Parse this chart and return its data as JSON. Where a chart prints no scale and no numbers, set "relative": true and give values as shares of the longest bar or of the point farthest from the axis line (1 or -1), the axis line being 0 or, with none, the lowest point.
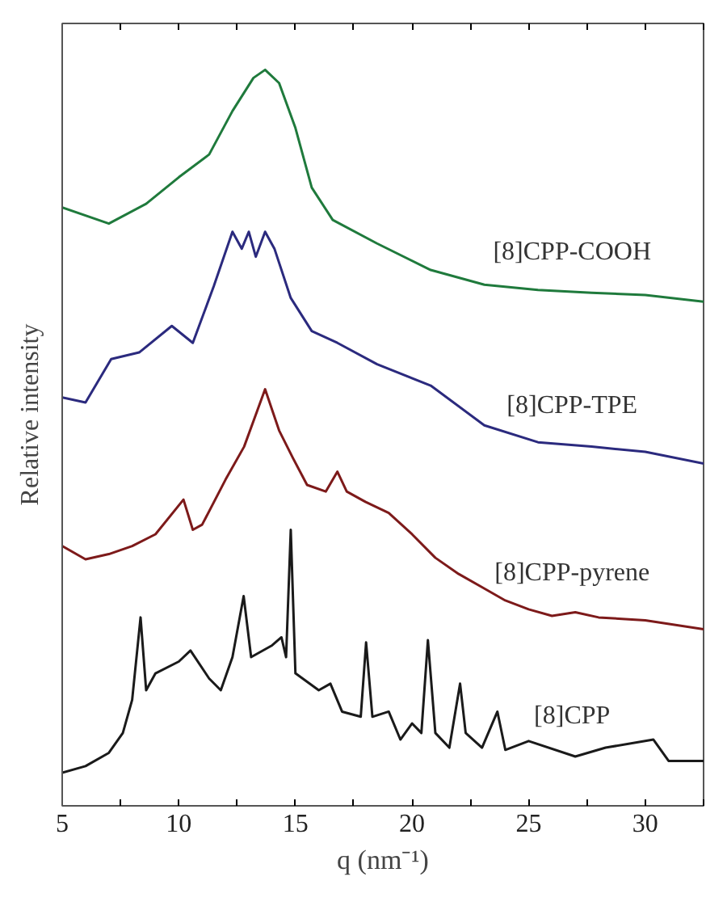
{
  "chart_data": {
    "type": "line",
    "xlabel": "q (nm⁻¹)",
    "ylabel": "Relative intensity",
    "relative": true,
    "xlim": [
      5,
      32.5
    ],
    "xticks": [
      5,
      {
        "value": 7.5,
        "label": null
      },
      10,
      {
        "value": 12.5,
        "label": null
      },
      15,
      {
        "value": 17.5,
        "label": null
      },
      20,
      {
        "value": 22.5,
        "label": null
      },
      25,
      {
        "value": 27.5,
        "label": null
      },
      30,
      {
        "value": 32.5,
        "label": null
      }
    ],
    "series": [
      {
        "name": "[8]CPP",
        "color": "#1a1a1a",
        "x": [
          5,
          6,
          7,
          7.6,
          8.0,
          8.36,
          8.6,
          9,
          10,
          10.5,
          11.3,
          11.8,
          12.3,
          12.78,
          13.1,
          14,
          14.4,
          14.6,
          14.8,
          15.0,
          16,
          16.5,
          17,
          17.8,
          18.03,
          18.3,
          19,
          19.5,
          20,
          20.4,
          20.68,
          21,
          21.6,
          22.06,
          22.3,
          23,
          23.66,
          24,
          25,
          27,
          28.3,
          30.35,
          31,
          32.5
        ],
        "values": [
          0.045,
          0.054,
          0.072,
          0.099,
          0.144,
          0.256,
          0.157,
          0.18,
          0.196,
          0.211,
          0.173,
          0.157,
          0.202,
          0.285,
          0.202,
          0.218,
          0.229,
          0.202,
          0.375,
          0.18,
          0.157,
          0.166,
          0.128,
          0.121,
          0.222,
          0.121,
          0.128,
          0.09,
          0.112,
          0.099,
          0.225,
          0.099,
          0.079,
          0.166,
          0.099,
          0.079,
          0.128,
          0.076,
          0.088,
          0.067,
          0.079,
          0.09,
          0.061,
          0.061
        ]
      },
      {
        "name": "[8]CPP-pyrene",
        "color": "#7d1a1a",
        "x": [
          5,
          6,
          7,
          8,
          9,
          10.2,
          10.6,
          11,
          12,
          12.8,
          13.7,
          14.3,
          14.9,
          15.5,
          16.3,
          16.8,
          17.2,
          18,
          19,
          20,
          21,
          22,
          23,
          24,
          25,
          26,
          27,
          28,
          30,
          32.5
        ],
        "values": [
          0.353,
          0.335,
          0.342,
          0.353,
          0.369,
          0.416,
          0.375,
          0.382,
          0.443,
          0.488,
          0.566,
          0.51,
          0.472,
          0.436,
          0.427,
          0.454,
          0.427,
          0.413,
          0.398,
          0.369,
          0.337,
          0.315,
          0.297,
          0.279,
          0.267,
          0.258,
          0.263,
          0.256,
          0.252,
          0.24
        ]
      },
      {
        "name": "[8]CPP-TPE",
        "color": "#2b2a7e",
        "x": [
          5,
          6,
          7.1,
          8.3,
          9.7,
          10.6,
          11.5,
          12.3,
          12.7,
          13.0,
          13.3,
          13.7,
          14.1,
          14.8,
          15.7,
          16.8,
          18.5,
          20.8,
          23.1,
          25.4,
          27.7,
          30,
          32.5
        ],
        "values": [
          0.555,
          0.548,
          0.607,
          0.616,
          0.652,
          0.629,
          0.706,
          0.78,
          0.757,
          0.78,
          0.746,
          0.78,
          0.757,
          0.69,
          0.645,
          0.629,
          0.6,
          0.571,
          0.517,
          0.494,
          0.488,
          0.481,
          0.465
        ]
      },
      {
        "name": "[8]CPP-COOH",
        "color": "#1f7a3c",
        "x": [
          5,
          7,
          8.6,
          10,
          11.3,
          12.3,
          13.2,
          13.7,
          14.3,
          15,
          15.7,
          16.6,
          18.5,
          20.8,
          23.1,
          25.4,
          27.7,
          30,
          32.5
        ],
        "values": [
          0.813,
          0.791,
          0.818,
          0.854,
          0.885,
          0.944,
          0.989,
          1.0,
          0.982,
          0.921,
          0.84,
          0.796,
          0.764,
          0.728,
          0.708,
          0.701,
          0.697,
          0.694,
          0.685
        ]
      }
    ]
  }
}
